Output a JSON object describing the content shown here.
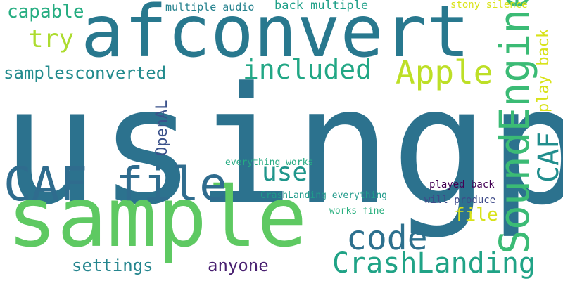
{
  "words": [
    {
      "text": "usingp",
      "color": "#2c728e"
    },
    {
      "text": "sample",
      "color": "#5ec962"
    },
    {
      "text": "afconvert",
      "color": "#28788e"
    },
    {
      "text": "CAF file",
      "color": "#2f6c8e"
    },
    {
      "text": "SoundEngine",
      "color": "#3bbb75"
    },
    {
      "text": "Apple",
      "color": "#bddf26"
    },
    {
      "text": "included",
      "color": "#22a785"
    },
    {
      "text": "code",
      "color": "#2d708e"
    },
    {
      "text": "CrashLanding",
      "color": "#20a386"
    },
    {
      "text": "CAF",
      "color": "#218e8d"
    },
    {
      "text": "try",
      "color": "#addc30"
    },
    {
      "text": "use",
      "color": "#1f968b"
    },
    {
      "text": "capable",
      "color": "#26ad81"
    },
    {
      "text": "samplesconverted",
      "color": "#228b8d"
    },
    {
      "text": "play back",
      "color": "#d8e219"
    },
    {
      "text": "OpenAL",
      "color": "#3b528b"
    },
    {
      "text": "file",
      "color": "#d8e219"
    },
    {
      "text": "settings",
      "color": "#25858e"
    },
    {
      "text": "anyone",
      "color": "#481f70"
    },
    {
      "text": "multiple audio",
      "color": "#26828e"
    },
    {
      "text": "back multiple",
      "color": "#1fa088"
    },
    {
      "text": "stony silence",
      "color": "#dae319"
    },
    {
      "text": "everything works",
      "color": "#25ab82"
    },
    {
      "text": "CrashLanding everything",
      "color": "#1f9a8a"
    },
    {
      "text": "played back",
      "color": "#440154"
    },
    {
      "text": "will produce",
      "color": "#3e4a89"
    },
    {
      "text": "works fine",
      "color": "#2ab07f"
    }
  ]
}
